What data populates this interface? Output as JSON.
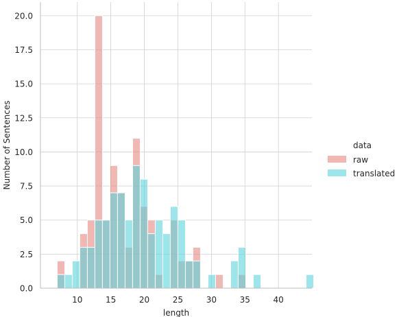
{
  "chart_data": {
    "type": "bar",
    "subtype": "overlapping-histogram",
    "xlabel": "length",
    "ylabel": "Number of Sentences",
    "xlim": [
      4.5,
      45
    ],
    "ylim": [
      0,
      21
    ],
    "x_ticks": [
      10,
      15,
      20,
      25,
      30,
      35,
      40
    ],
    "y_ticks": [
      0.0,
      2.5,
      5.0,
      7.5,
      10.0,
      12.5,
      15.0,
      17.5,
      20.0
    ],
    "y_tick_labels": [
      "0.0",
      "2.5",
      "5.0",
      "7.5",
      "10.0",
      "12.5",
      "15.0",
      "17.5",
      "20.0"
    ],
    "grid": true,
    "bin_width": 1.125,
    "bin_edges_start": 7,
    "series": [
      {
        "name": "raw",
        "color": "#e8877e",
        "values": [
          2,
          0,
          0,
          4,
          5,
          20,
          5,
          9,
          7,
          3,
          11,
          6,
          5,
          1,
          0,
          5,
          2,
          2,
          3,
          0,
          0,
          1,
          0,
          0,
          1,
          0,
          0,
          0,
          0,
          0,
          0,
          0,
          0,
          0
        ]
      },
      {
        "name": "translated",
        "color": "#5ad3dc",
        "values": [
          1,
          1,
          2,
          3,
          3,
          5,
          5,
          7,
          7,
          5,
          9,
          8,
          4,
          5,
          4,
          6,
          5,
          2,
          2,
          0,
          1,
          0,
          0,
          2,
          3,
          0,
          1,
          0,
          0,
          0,
          0,
          0,
          0,
          1
        ]
      }
    ],
    "legend": {
      "title": "data",
      "placement": "right",
      "entries": [
        "raw",
        "translated"
      ]
    }
  }
}
